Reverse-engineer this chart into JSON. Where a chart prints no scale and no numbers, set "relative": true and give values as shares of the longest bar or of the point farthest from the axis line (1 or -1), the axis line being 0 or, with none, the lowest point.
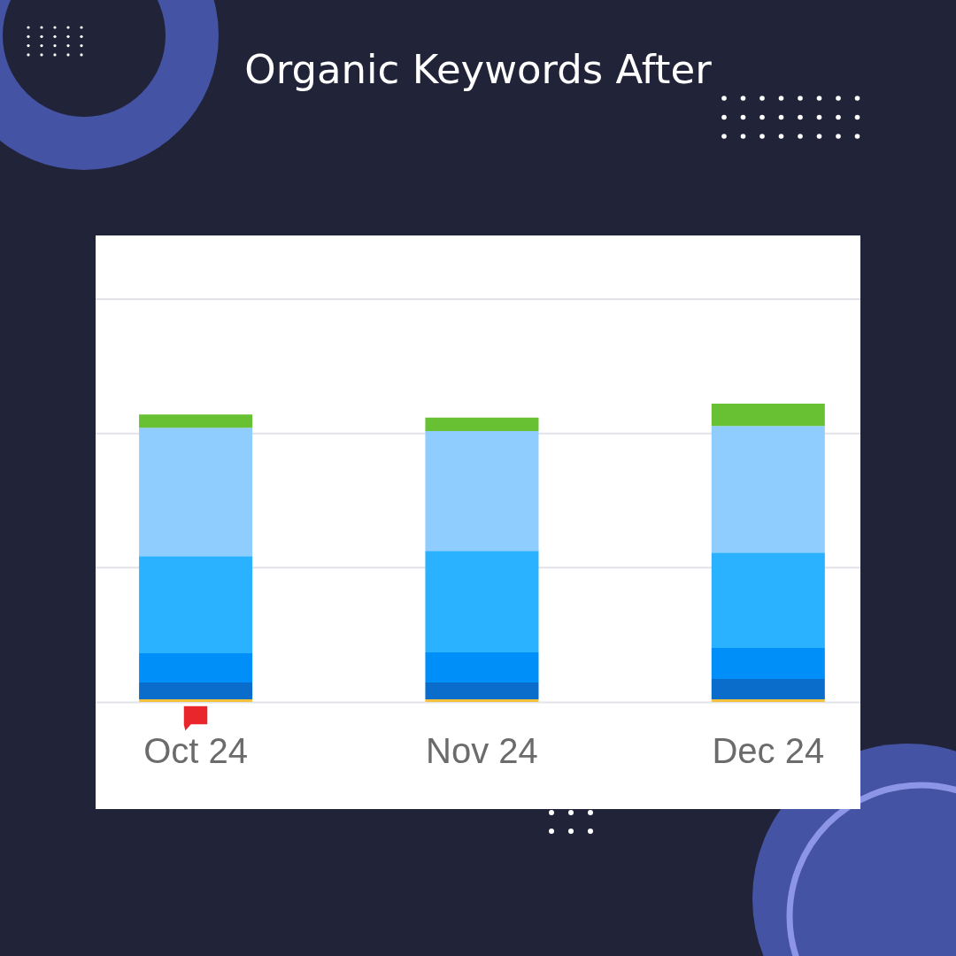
{
  "chart_data": {
    "type": "bar",
    "title": "Organic Keywords After",
    "categories": [
      "Oct 24",
      "Nov 24",
      "Dec 24"
    ],
    "stacked": true,
    "relative": true,
    "series": [
      {
        "color": "#f3c13c",
        "values": [
          0.009,
          0.009,
          0.009
        ]
      },
      {
        "color": "#0a6ccb",
        "values": [
          0.056,
          0.056,
          0.068
        ]
      },
      {
        "color": "#008ff8",
        "values": [
          0.098,
          0.101,
          0.104
        ]
      },
      {
        "color": "#2ab1ff",
        "values": [
          0.326,
          0.341,
          0.32
        ]
      },
      {
        "color": "#8ecdfd",
        "values": [
          0.43,
          0.401,
          0.424
        ]
      },
      {
        "color": "#67c133",
        "values": [
          0.045,
          0.045,
          0.075
        ]
      }
    ],
    "ref_lines": [
      {
        "axis": "y",
        "value": 0.45,
        "color": "#e2e3e8"
      },
      {
        "axis": "y",
        "value": 0.9,
        "color": "#e2e3e8"
      },
      {
        "axis": "y",
        "value": 1.35,
        "color": "#e2e3e8"
      }
    ]
  }
}
